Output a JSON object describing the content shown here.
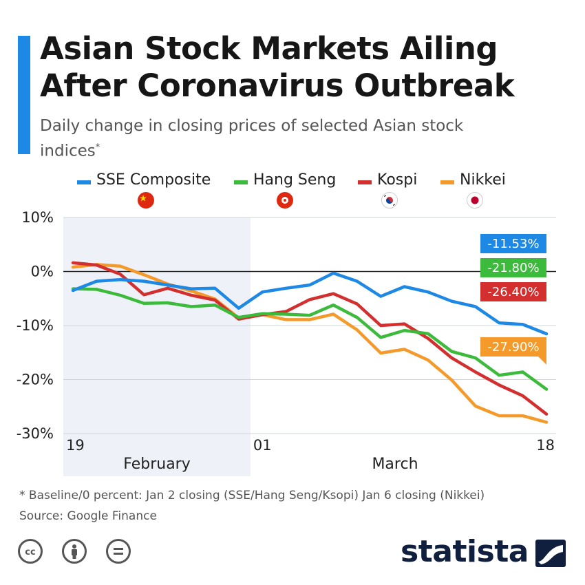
{
  "title": "Asian Stock Markets Ailing After Coronavirus Outbreak",
  "subtitle": "Daily change in closing prices of selected Asian stock indices",
  "subtitle_mark": "*",
  "footnote": "* Baseline/0 percent: Jan 2 closing (SSE/Hang Seng/Ksopi) Jan 6 closing (Nikkei)",
  "source": "Source: Google Finance",
  "brand": "statista",
  "colors": {
    "accent": "#1e88e5",
    "sse": "#1e88e5",
    "hangseng": "#3cba3c",
    "kospi": "#d32f2f",
    "nikkei": "#f39a2b",
    "shade": "#eef2f8"
  },
  "legend": [
    {
      "label": "SSE Composite",
      "flag": "china-flag-icon"
    },
    {
      "label": "Hang Seng",
      "flag": "hong-kong-flag-icon"
    },
    {
      "label": "Kospi",
      "flag": "south-korea-flag-icon"
    },
    {
      "label": "Nikkei",
      "flag": "japan-flag-icon"
    }
  ],
  "chart_data": {
    "type": "line",
    "x": [
      "2020-02-19",
      "2020-02-20",
      "2020-02-21",
      "2020-02-24",
      "2020-02-25",
      "2020-02-26",
      "2020-02-27",
      "2020-02-28",
      "2020-03-02",
      "2020-03-03",
      "2020-03-04",
      "2020-03-05",
      "2020-03-06",
      "2020-03-09",
      "2020-03-10",
      "2020-03-11",
      "2020-03-12",
      "2020-03-13",
      "2020-03-16",
      "2020-03-17",
      "2020-03-18"
    ],
    "x_tick_labels": [
      "19",
      "01",
      "18"
    ],
    "month_labels": [
      "February",
      "March"
    ],
    "shaded_range": [
      "2020-02-19",
      "2020-02-28"
    ],
    "ylim": [
      -30,
      10
    ],
    "y_ticks": [
      10,
      0,
      -10,
      -20,
      -30
    ],
    "y_tick_labels": [
      "10%",
      "0%",
      "-10%",
      "-20%",
      "-30%"
    ],
    "grid": true,
    "series": [
      {
        "name": "SSE Composite",
        "color": "#1e88e5",
        "end_label": "-11.53%",
        "values": [
          -3.5,
          -1.8,
          -1.5,
          -1.8,
          -2.5,
          -3.2,
          -3.1,
          -6.8,
          -3.8,
          -3.1,
          -2.5,
          -0.3,
          -1.8,
          -4.6,
          -2.8,
          -3.8,
          -5.5,
          -6.5,
          -9.5,
          -9.8,
          -11.53
        ]
      },
      {
        "name": "Hang Seng",
        "color": "#3cba3c",
        "end_label": "-21.80%",
        "values": [
          -3.2,
          -3.3,
          -4.4,
          -5.9,
          -5.8,
          -6.5,
          -6.2,
          -8.5,
          -7.8,
          -7.9,
          -8.1,
          -6.2,
          -8.5,
          -12.2,
          -10.9,
          -11.5,
          -14.8,
          -16.0,
          -19.2,
          -18.6,
          -21.8
        ]
      },
      {
        "name": "Kospi",
        "color": "#d32f2f",
        "end_label": "-26.40%",
        "values": [
          1.6,
          1.2,
          -0.5,
          -4.3,
          -3.1,
          -4.4,
          -5.3,
          -8.8,
          -8.0,
          -7.4,
          -5.2,
          -4.1,
          -6.0,
          -10.0,
          -9.7,
          -12.4,
          -16.0,
          -18.6,
          -21.0,
          -23.0,
          -26.4
        ]
      },
      {
        "name": "Nikkei",
        "color": "#f39a2b",
        "end_label": "-27.90%",
        "values": [
          0.8,
          1.3,
          1.0,
          -0.6,
          -2.3,
          -3.6,
          -5.1,
          -8.6,
          -8.0,
          -8.9,
          -8.9,
          -7.9,
          -10.8,
          -15.1,
          -14.4,
          -16.4,
          -20.1,
          -24.9,
          -26.7,
          -26.7,
          -27.9
        ]
      }
    ]
  }
}
